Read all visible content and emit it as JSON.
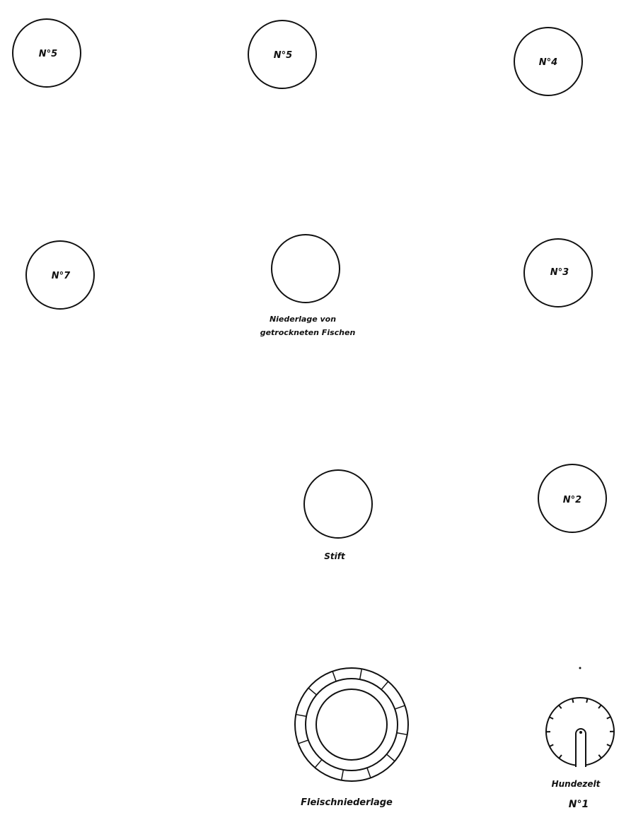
{
  "tents": [
    {
      "id": "n5a",
      "label": "N°5"
    },
    {
      "id": "n5b",
      "label": "N°5"
    },
    {
      "id": "n4",
      "label": "N°4"
    },
    {
      "id": "n7",
      "label": "N°7"
    },
    {
      "id": "n3",
      "label": "N°3"
    },
    {
      "id": "n2",
      "label": "N°2"
    }
  ],
  "fish_store": {
    "caption_line1": "Niederlage von",
    "caption_line2": "getrockneten Fischen"
  },
  "stift": {
    "caption": "Stift"
  },
  "meat_store": {
    "caption": "Fleischniederlage"
  },
  "dog_tent": {
    "caption_line1": "Hundezelt",
    "caption_line2": "N°1"
  }
}
